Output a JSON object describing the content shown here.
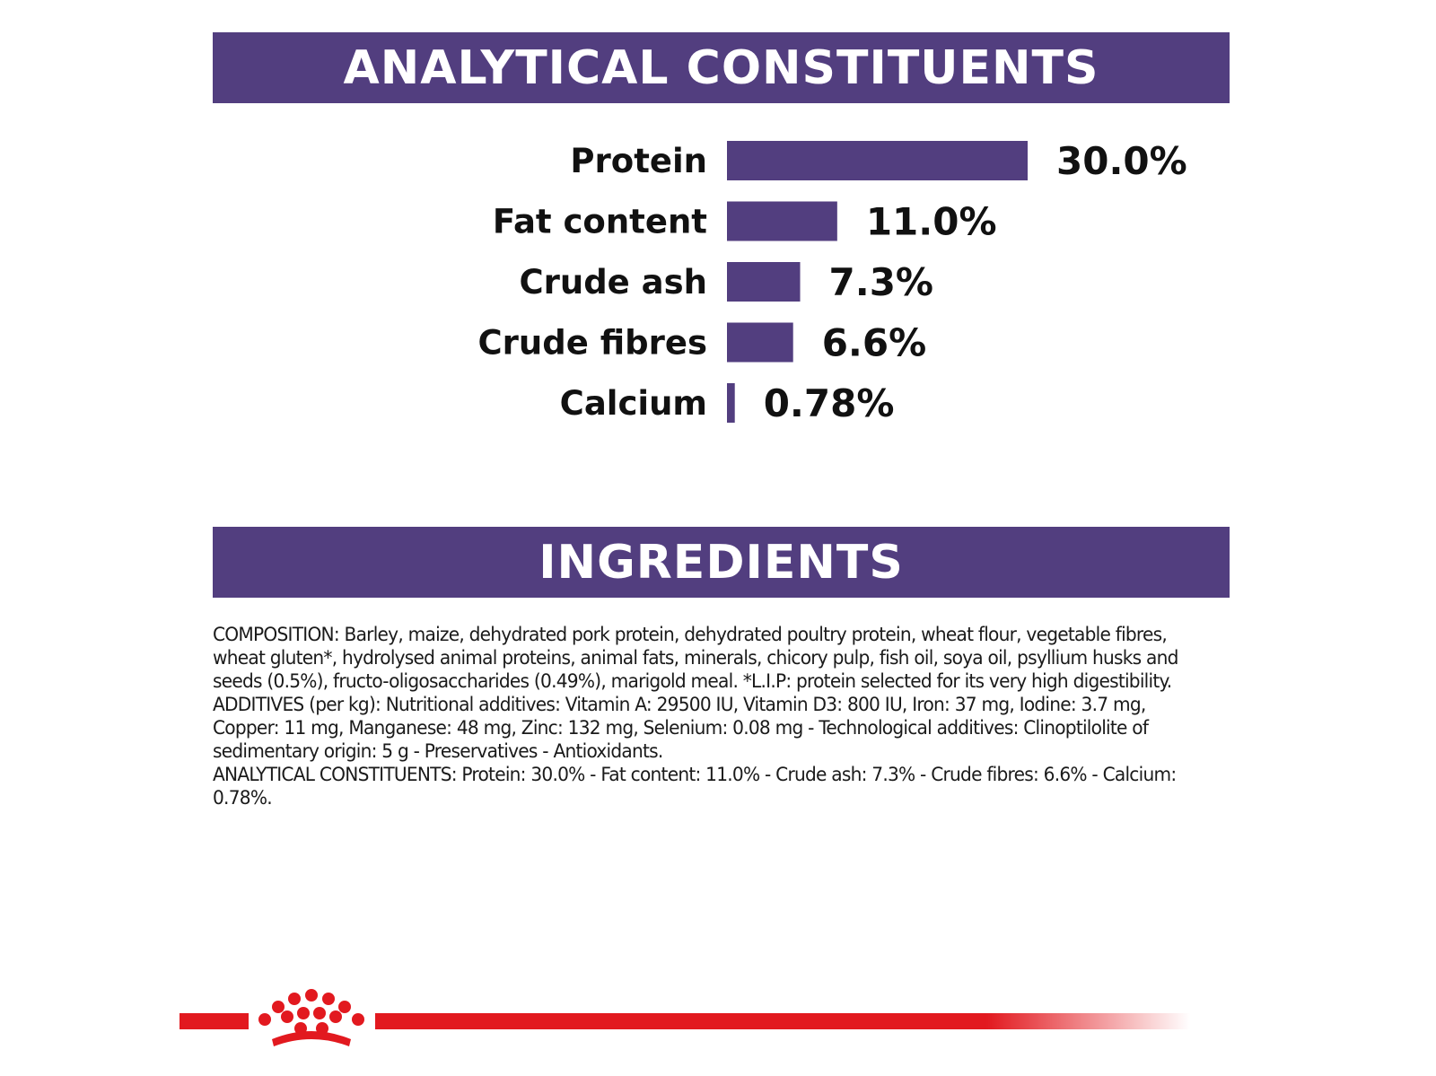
{
  "sections": {
    "constituents_title": "ANALYTICAL CONSTITUENTS",
    "ingredients_title": "INGREDIENTS"
  },
  "chart_data": {
    "type": "bar",
    "orientation": "horizontal",
    "categories": [
      "Protein",
      "Fat content",
      "Crude ash",
      "Crude fibres",
      "Calcium"
    ],
    "values": [
      30.0,
      11.0,
      7.3,
      6.6,
      0.78
    ],
    "value_labels": [
      "30.0%",
      "11.0%",
      "7.3%",
      "6.6%",
      "0.78%"
    ],
    "title": "ANALYTICAL CONSTITUENTS",
    "xlabel": "",
    "ylabel": "",
    "xlim": [
      0,
      30
    ],
    "grid": false,
    "legend": "none",
    "bar_color": "#523e7f"
  },
  "ingredients": {
    "composition": "COMPOSITION: Barley, maize, dehydrated pork protein, dehydrated poultry protein, wheat flour, vegetable fibres, wheat gluten*, hydrolysed animal proteins, animal fats, minerals, chicory pulp, fish oil, soya oil, psyllium husks and seeds (0.5%), fructo-oligosaccharides (0.49%), marigold meal. *L.I.P: protein selected for its very high digestibility.",
    "additives": "ADDITIVES (per kg): Nutritional additives: Vitamin A: 29500 IU, Vitamin D3: 800 IU, Iron: 37 mg, Iodine: 3.7 mg, Copper: 11 mg, Manganese: 48 mg, Zinc: 132 mg, Selenium: 0.08 mg - Technological additives: Clinoptilolite of sedimentary origin: 5 g - Preservatives - Antioxidants.",
    "analytical": "ANALYTICAL CONSTITUENTS: Protein: 30.0% - Fat content: 11.0% - Crude ash: 7.3% - Crude fibres: 6.6% - Calcium: 0.78%."
  },
  "colors": {
    "banner": "#523e7f",
    "brand_red": "#e2191f"
  },
  "icons": {
    "logo": "crown-icon"
  }
}
